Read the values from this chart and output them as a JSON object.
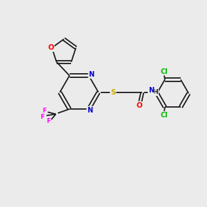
{
  "background_color": "#ebebeb",
  "bond_color": "#1a1a1a",
  "atom_colors": {
    "O": "#ff0000",
    "N": "#0000cc",
    "S": "#ccaa00",
    "F": "#ff00ff",
    "Cl": "#00bb00",
    "C": "#1a1a1a"
  },
  "figsize": [
    3.0,
    3.0
  ],
  "dpi": 100,
  "lw": 1.3,
  "fs": 7.0
}
